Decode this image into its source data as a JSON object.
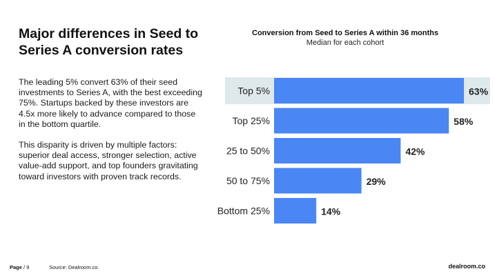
{
  "headline": "Major differences in Seed to Series A conversion rates",
  "paragraphs": [
    "The leading 5% convert 63% of their seed investments to Series A, with the best exceeding 75%. Startups backed by these investors are 4.5x more likely to advance compared to those in the bottom quartile.",
    "This disparity is driven by multiple factors: superior deal access, stronger selection, active value-add support, and top founders gravitating toward investors with proven track records."
  ],
  "footer": {
    "page_label": "Page",
    "page_number": "9",
    "source": "Source:  Dealroom.co.",
    "brand": "dealroom.co"
  },
  "colors": {
    "bar": "#4a86f4",
    "highlight": "#dfe9ec"
  },
  "chart_data": {
    "type": "bar",
    "orientation": "horizontal",
    "title": "Conversion from Seed to Series A within 36 months",
    "subtitle": "Median for each cohort",
    "categories": [
      "Top 5%",
      "Top 25%",
      "25 to 50%",
      "50 to 75%",
      "Bottom 25%"
    ],
    "values": [
      63,
      58,
      42,
      29,
      14
    ],
    "value_labels": [
      "63%",
      "58%",
      "42%",
      "29%",
      "14%"
    ],
    "highlighted_category": "Top 5%",
    "xlim": [
      0,
      63
    ],
    "grid": false,
    "legend": "none"
  }
}
